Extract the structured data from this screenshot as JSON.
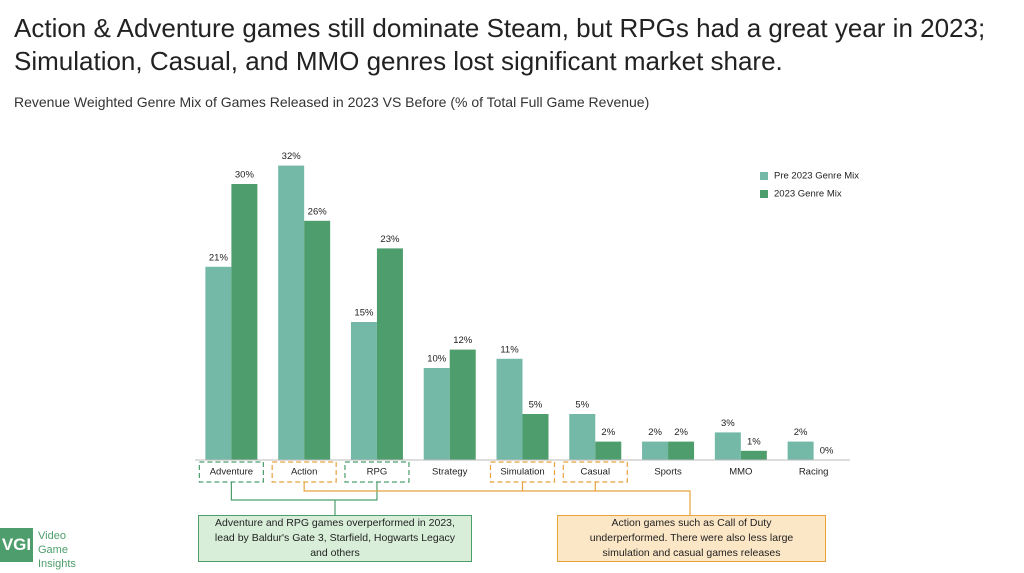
{
  "chart_data": {
    "type": "bar",
    "title": "Action & Adventure games still dominate Steam, but RPGs had a great year in 2023; Simulation, Casual, and MMO genres lost significant market share.",
    "subtitle": "Revenue Weighted Genre Mix of Games Released in 2023 VS Before (% of Total Full Game Revenue)",
    "categories": [
      "Adventure",
      "Action",
      "RPG",
      "Strategy",
      "Simulation",
      "Casual",
      "Sports",
      "MMO",
      "Racing"
    ],
    "series": [
      {
        "name": "Pre 2023 Genre Mix",
        "color": "#74b9a8",
        "values": [
          21,
          32,
          15,
          10,
          11,
          5,
          2,
          3,
          2
        ],
        "value_labels": [
          "21%",
          "32%",
          "15%",
          "10%",
          "11%",
          "5%",
          "2%",
          "3%",
          "2%"
        ]
      },
      {
        "name": "2023 Genre Mix",
        "color": "#4e9e6d",
        "values": [
          30,
          26,
          23,
          12,
          5,
          2,
          2,
          1,
          0
        ],
        "value_labels": [
          "30%",
          "26%",
          "23%",
          "12%",
          "5%",
          "2%",
          "2%",
          "1%",
          "0%"
        ]
      }
    ],
    "legend": "top-right",
    "annotations": [
      {
        "text": "Adventure and RPG games overperformed in 2023, lead by Baldur's Gate 3, Starfield, Hogwarts Legacy and others",
        "color": "#4e9e6d"
      },
      {
        "text": "Action games such as Call of Duty underperformed. There were also less large simulation and casual games releases",
        "color": "#e8a33d"
      }
    ]
  },
  "logo": {
    "mark": "VGI",
    "lines": [
      "Video",
      "Game",
      "Insights"
    ]
  }
}
